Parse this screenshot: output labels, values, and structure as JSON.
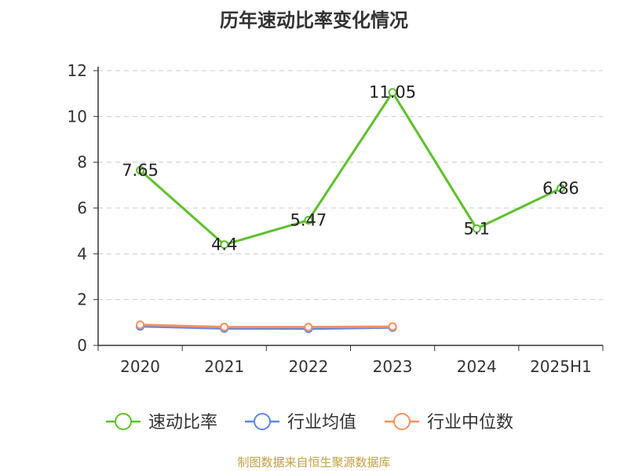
{
  "title": "历年速动比率变化情况",
  "source": "制图数据来自恒生聚源数据库",
  "colors": {
    "quick_ratio": "#5cc12b",
    "industry_mean": "#5b86e5",
    "industry_median": "#f6905e"
  },
  "chart_data": {
    "type": "line",
    "title": "历年速动比率变化情况",
    "categories": [
      "2020",
      "2021",
      "2022",
      "2023",
      "2024",
      "2025H1"
    ],
    "series": [
      {
        "name": "速动比率",
        "values": [
          7.65,
          4.4,
          5.47,
          11.05,
          5.1,
          6.86
        ],
        "labels_shown": true
      },
      {
        "name": "行业均值",
        "values": [
          0.83,
          0.74,
          0.73,
          0.78,
          null,
          null
        ]
      },
      {
        "name": "行业中位数",
        "values": [
          0.9,
          0.8,
          0.8,
          0.82,
          null,
          null
        ]
      }
    ],
    "yticks": [
      0,
      2,
      4,
      6,
      8,
      10,
      12
    ],
    "ylim": [
      0,
      12
    ],
    "grid": true,
    "legend_position": "bottom",
    "xlabel": "",
    "ylabel": ""
  }
}
